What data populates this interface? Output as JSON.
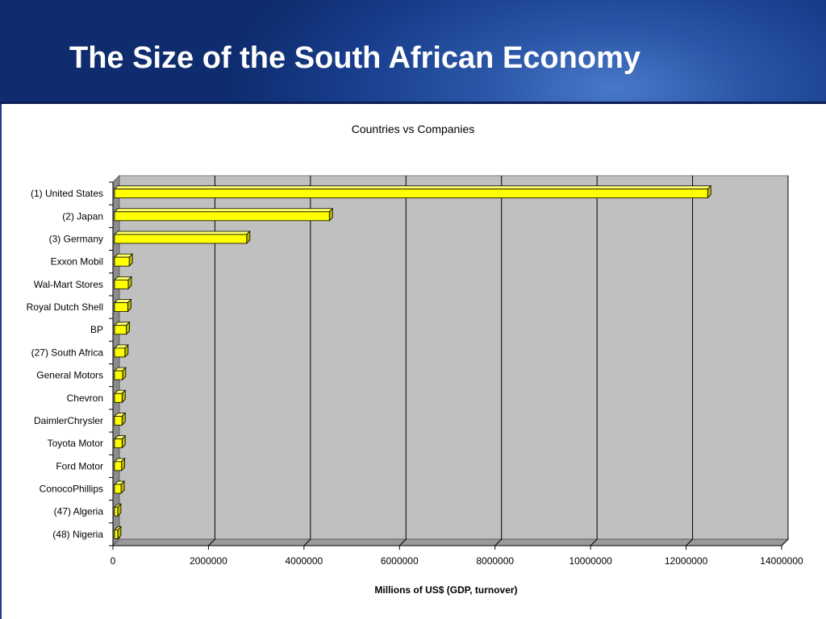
{
  "slide": {
    "title": "The Size of the South African Economy"
  },
  "colors": {
    "header_blue": "#1a3f8f",
    "plot_background": "#c0c0c0",
    "bar_fill": "#ffff00",
    "bar_side": "#b8b800",
    "gridline": "#000000"
  },
  "chart_data": {
    "type": "bar",
    "orientation": "horizontal",
    "style": "3d-clustered",
    "title": "Countries vs Companies",
    "xlabel": "Millions of US$ (GDP, turnover)",
    "ylabel": "",
    "xlim": [
      0,
      14000000
    ],
    "xticks": [
      0,
      2000000,
      4000000,
      6000000,
      8000000,
      10000000,
      12000000,
      14000000
    ],
    "xtick_labels": [
      "0",
      "2000000",
      "4000000",
      "6000000",
      "8000000",
      "10000000",
      "12000000",
      "14000000"
    ],
    "grid": "vertical major gridlines",
    "legend": "none",
    "categories": [
      "(1) United States",
      "(2) Japan",
      "(3) Germany",
      "Exxon Mobil",
      "Wal-Mart Stores",
      "Royal Dutch Shell",
      "BP",
      "(27) South Africa",
      "General Motors",
      "Chevron",
      "DaimlerChrysler",
      "Toyota Motor",
      "Ford Motor",
      "ConocoPhillips",
      "(47) Algeria",
      "(48) Nigeria"
    ],
    "values": [
      12450000,
      4530000,
      2800000,
      340000,
      320000,
      310000,
      280000,
      250000,
      200000,
      190000,
      190000,
      190000,
      180000,
      170000,
      100000,
      100000
    ]
  }
}
